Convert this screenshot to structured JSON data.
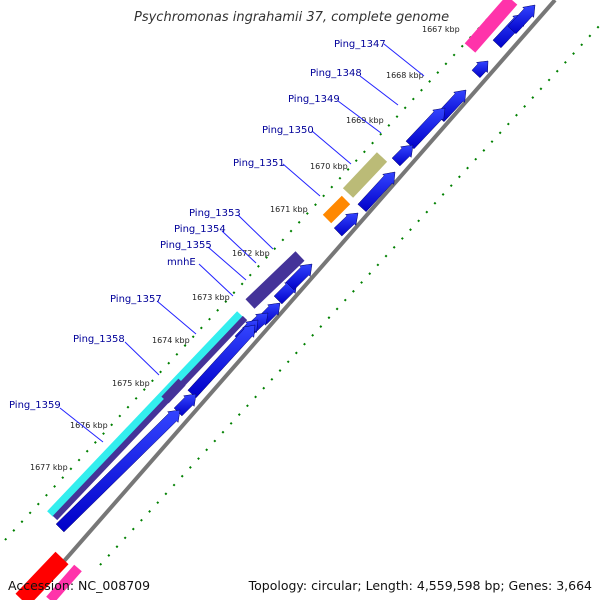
{
  "title": "Psychromonas ingrahamii 37, complete genome",
  "accession_label": "Accession: NC_008709",
  "topology_label": "Topology: circular; Length: 4,559,598 bp; Genes: 3,664",
  "colors": {
    "gene_arrow": "#0000ee",
    "backbone": "#777777",
    "tick": "#008000",
    "label": "#000099",
    "leader": "#2222ff",
    "highlight_pink": "#ff33aa",
    "highlight_olive": "#bbbb77",
    "highlight_orange": "#ff8800",
    "highlight_purple": "#443399",
    "highlight_cyan": "#33eeee",
    "highlight_red": "#ff0000"
  },
  "kbp_ticks": [
    "1667 kbp",
    "1668 kbp",
    "1669 kbp",
    "1670 kbp",
    "1671 kbp",
    "1672 kbp",
    "1673 kbp",
    "1674 kbp",
    "1675 kbp",
    "1676 kbp",
    "1677 kbp"
  ],
  "gene_labels": [
    "Ping_1347",
    "Ping_1348",
    "Ping_1349",
    "Ping_1350",
    "Ping_1351",
    "Ping_1353",
    "Ping_1354",
    "Ping_1355",
    "mnhE",
    "Ping_1357",
    "Ping_1358",
    "Ping_1359"
  ]
}
